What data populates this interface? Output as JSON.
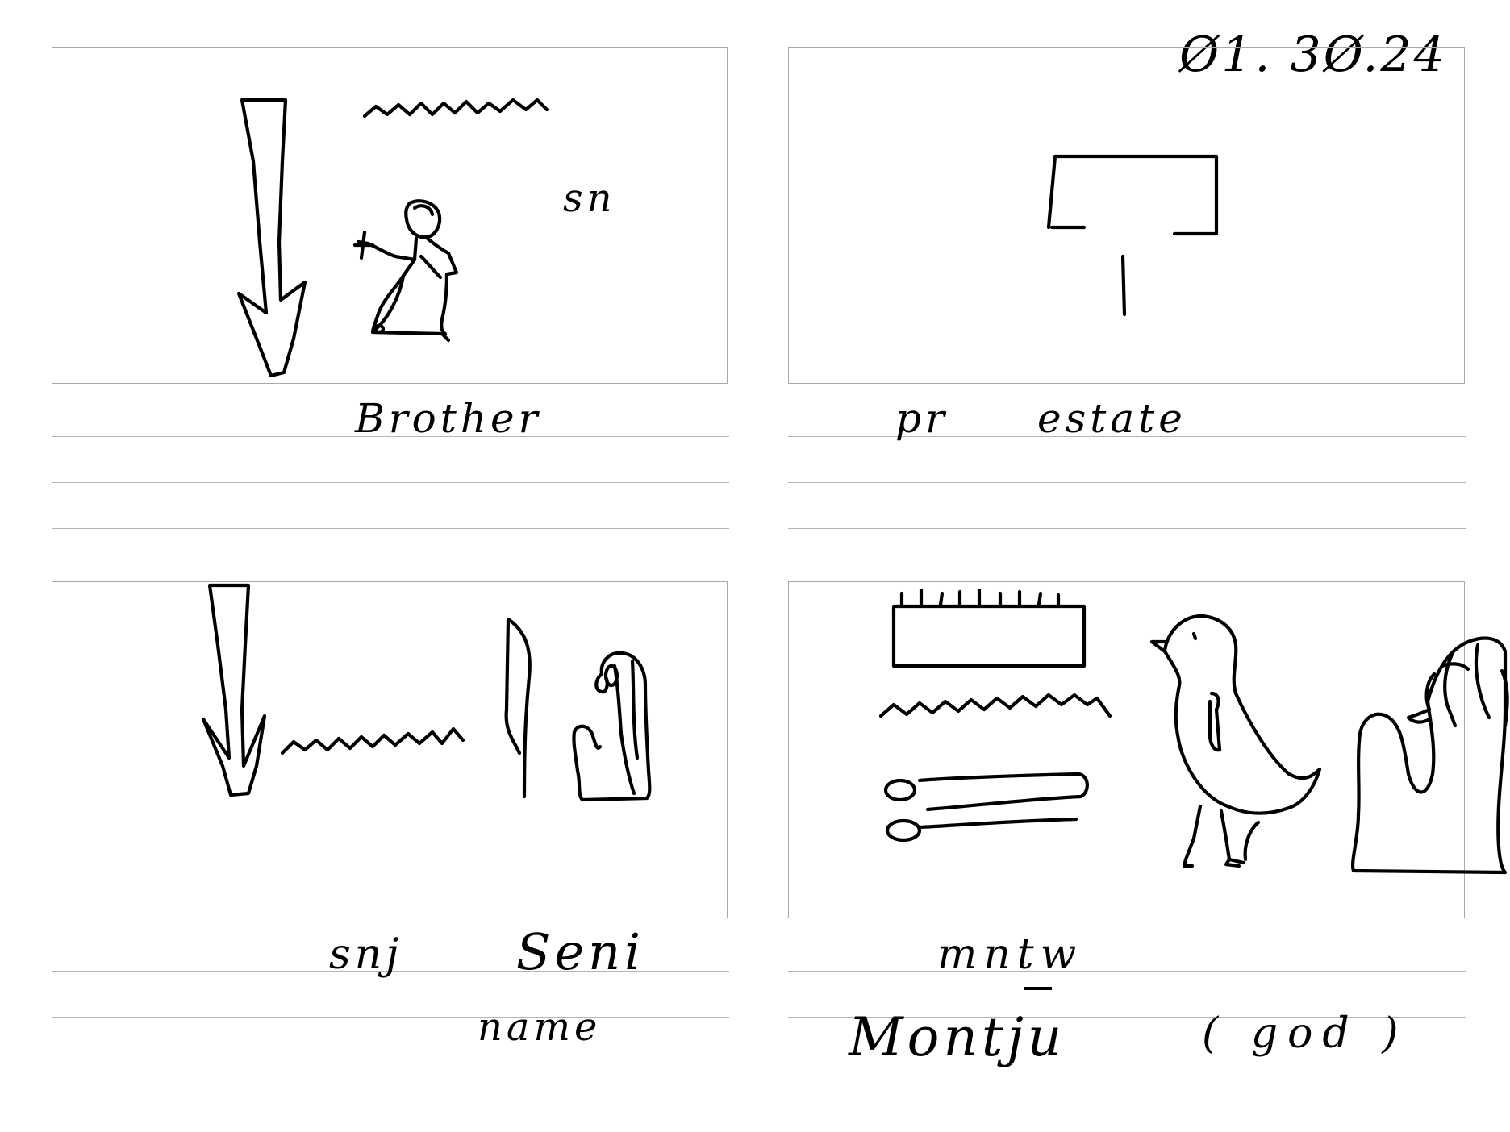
{
  "page_ref": "Ø1. 3Ø.24",
  "cards": [
    {
      "id": "brother",
      "glyph_note": "sn",
      "transliteration": "",
      "meaning": "Brother",
      "extra": "",
      "glyphs": [
        "arrow-glyph",
        "water-line-glyph",
        "seated-man-glyph"
      ]
    },
    {
      "id": "estate",
      "glyph_note": "",
      "transliteration": "pr",
      "meaning": "estate",
      "extra": "",
      "glyphs": [
        "house-glyph",
        "stroke-glyph"
      ]
    },
    {
      "id": "seni",
      "glyph_note": "",
      "transliteration": "snj",
      "meaning": "Seni",
      "extra": "name",
      "glyphs": [
        "arrow-glyph",
        "water-line-glyph",
        "reed-leaf-glyph",
        "seated-man-glyph"
      ]
    },
    {
      "id": "montju",
      "glyph_note": "",
      "transliteration": "mntw",
      "meaning": "Montju",
      "extra": "( god )",
      "glyphs": [
        "game-board-glyph",
        "water-line-glyph",
        "tethering-rope-glyph",
        "quail-chick-glyph",
        "seated-god-glyph"
      ]
    }
  ]
}
